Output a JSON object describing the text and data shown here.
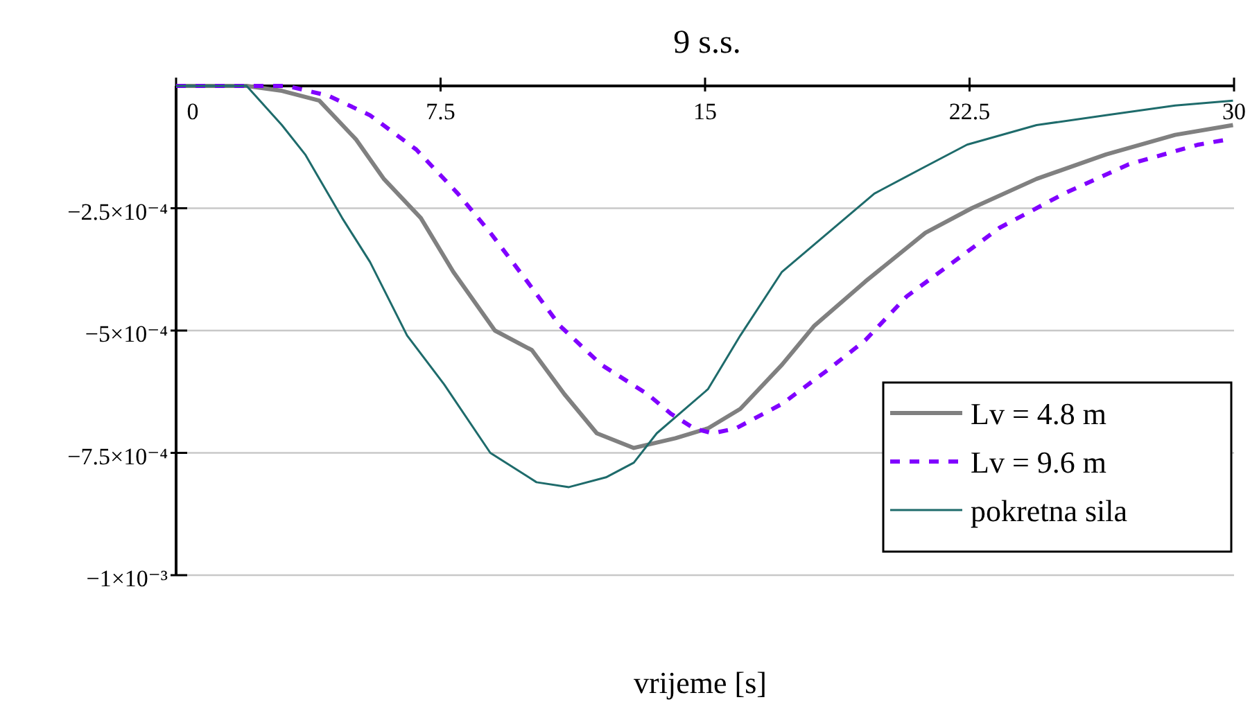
{
  "chart_data": {
    "type": "line",
    "title": "9 s.s.",
    "xlabel": "vrijeme  [s]",
    "xlim": [
      0,
      30
    ],
    "xticks": [
      0,
      7.5,
      15,
      22.5,
      30
    ],
    "ylim": [
      -0.001,
      0
    ],
    "yticks": [
      {
        "value": -0.00025,
        "label": "−2.5×10⁻⁴"
      },
      {
        "value": -0.0005,
        "label": "−5×10⁻⁴"
      },
      {
        "value": -0.00075,
        "label": "−7.5×10⁻⁴"
      },
      {
        "value": -0.001,
        "label": "−1×10⁻³"
      }
    ],
    "grid": "y",
    "legend": "right",
    "series": [
      {
        "name": "Lv = 4.8 m",
        "color": "#808080",
        "line_style": "solid",
        "x": [
          0,
          2,
          3,
          4.06,
          5.11,
          5.89,
          6.94,
          7.86,
          9.04,
          10.09,
          11.01,
          11.93,
          12.98,
          14.16,
          15.08,
          16,
          17.18,
          18.1,
          19.54,
          21.25,
          22.56,
          24.4,
          26.37,
          28.33,
          29.97
        ],
        "values": [
          0,
          0,
          -1e-05,
          -3e-05,
          -0.00011,
          -0.00019,
          -0.00027,
          -0.00038,
          -0.0005,
          -0.00054,
          -0.00063,
          -0.00071,
          -0.00074,
          -0.00072,
          -0.0007,
          -0.00066,
          -0.00057,
          -0.00049,
          -0.0004,
          -0.0003,
          -0.00025,
          -0.00019,
          -0.00014,
          -0.0001,
          -8e-05
        ]
      },
      {
        "name": "Lv = 9.6 m",
        "color": "#8000ff",
        "line_style": "dashed",
        "x": [
          0,
          2.4,
          3.14,
          4.32,
          5.5,
          6.81,
          7.99,
          8.91,
          9.96,
          10.88,
          12.06,
          13.37,
          14.03,
          14.69,
          15.21,
          15.87,
          17.18,
          18.49,
          19.54,
          20.72,
          22.04,
          23.35,
          25.18,
          27.02,
          28.99,
          29.78
        ],
        "values": [
          0,
          0,
          0,
          -2e-05,
          -6e-05,
          -0.00013,
          -0.00022,
          -0.0003,
          -0.0004,
          -0.00049,
          -0.00057,
          -0.00063,
          -0.00067,
          -0.0007,
          -0.00071,
          -0.0007,
          -0.00065,
          -0.00058,
          -0.00052,
          -0.00043,
          -0.00036,
          -0.00029,
          -0.00022,
          -0.00016,
          -0.00012,
          -0.00011
        ]
      },
      {
        "name": "pokretna sila",
        "color": "#1e6b6b",
        "line_style": "solid",
        "x": [
          0,
          2,
          3,
          3.66,
          4.71,
          5.5,
          6.55,
          7.6,
          8.91,
          10.22,
          11.14,
          12.19,
          12.98,
          13.63,
          15.08,
          16,
          17.18,
          18.49,
          19.8,
          21.11,
          22.43,
          24.4,
          26.37,
          28.33,
          29.97
        ],
        "values": [
          0,
          0,
          -8e-05,
          -0.00014,
          -0.00027,
          -0.00036,
          -0.00051,
          -0.00061,
          -0.00075,
          -0.00081,
          -0.00082,
          -0.0008,
          -0.00077,
          -0.00071,
          -0.00062,
          -0.00051,
          -0.00038,
          -0.0003,
          -0.00022,
          -0.00017,
          -0.00012,
          -8e-05,
          -6e-05,
          -4e-05,
          -3e-05
        ]
      }
    ]
  }
}
